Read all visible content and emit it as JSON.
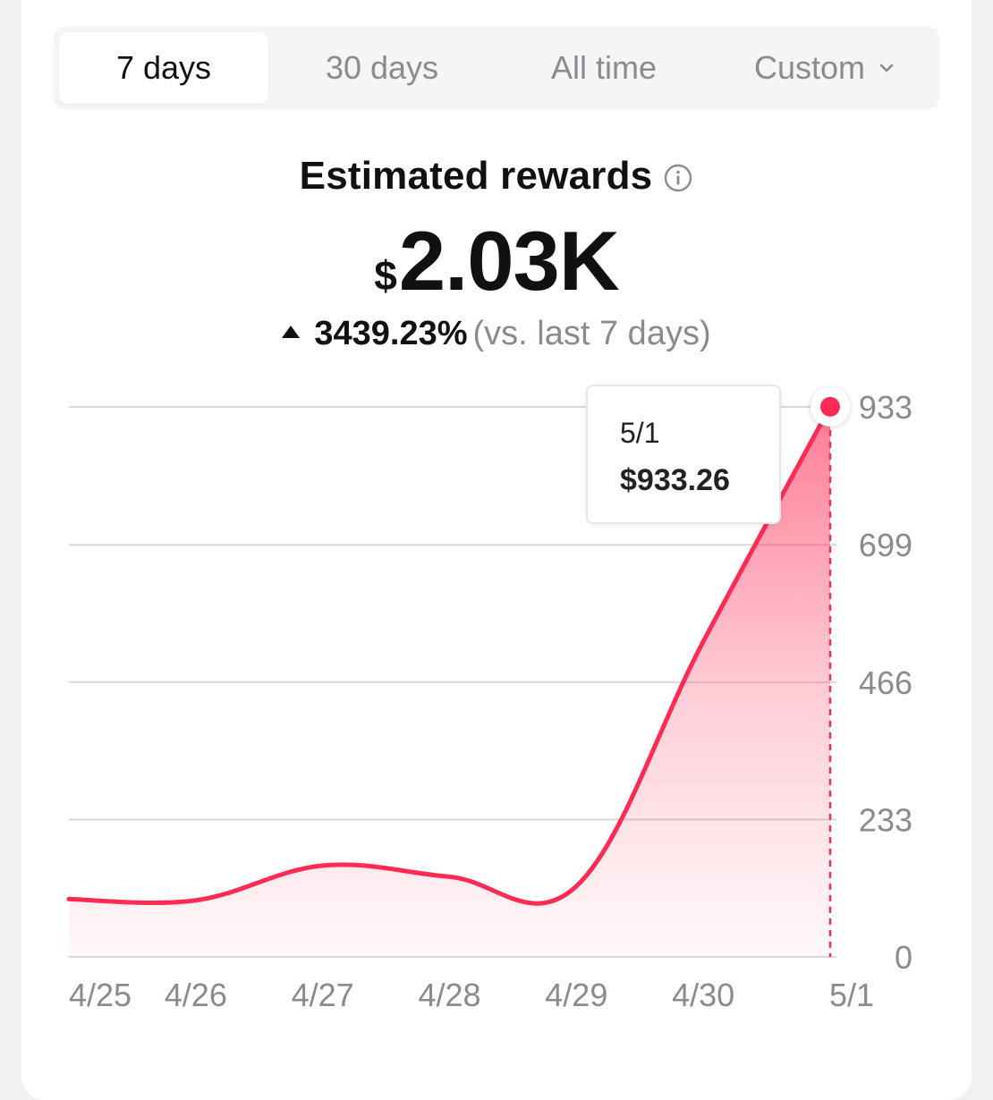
{
  "tabs": [
    {
      "label": "7 days",
      "active": true
    },
    {
      "label": "30 days",
      "active": false
    },
    {
      "label": "All time",
      "active": false
    },
    {
      "label": "Custom",
      "active": false
    }
  ],
  "summary": {
    "title": "Estimated rewards",
    "currency": "$",
    "amount": "2.03K",
    "change": "3439.23%",
    "change_period": "(vs. last 7 days)"
  },
  "tooltip": {
    "date": "5/1",
    "value": "$933.26"
  },
  "colors": {
    "accent": "#fe2c55",
    "grid": "#d9d9dd",
    "axis_text": "#8a8b91"
  },
  "chart_data": {
    "type": "area",
    "title": "Estimated rewards",
    "x": [
      "4/25",
      "4/26",
      "4/27",
      "4/28",
      "4/29",
      "4/30",
      "5/1"
    ],
    "values": [
      98,
      96,
      155,
      136,
      120,
      535,
      933.26
    ],
    "ylim": [
      0,
      933
    ],
    "yticks": [
      0,
      233,
      466,
      699,
      933
    ],
    "highlight": {
      "x": "5/1",
      "value": 933.26
    },
    "grid": true,
    "xlabel": "",
    "ylabel": ""
  }
}
